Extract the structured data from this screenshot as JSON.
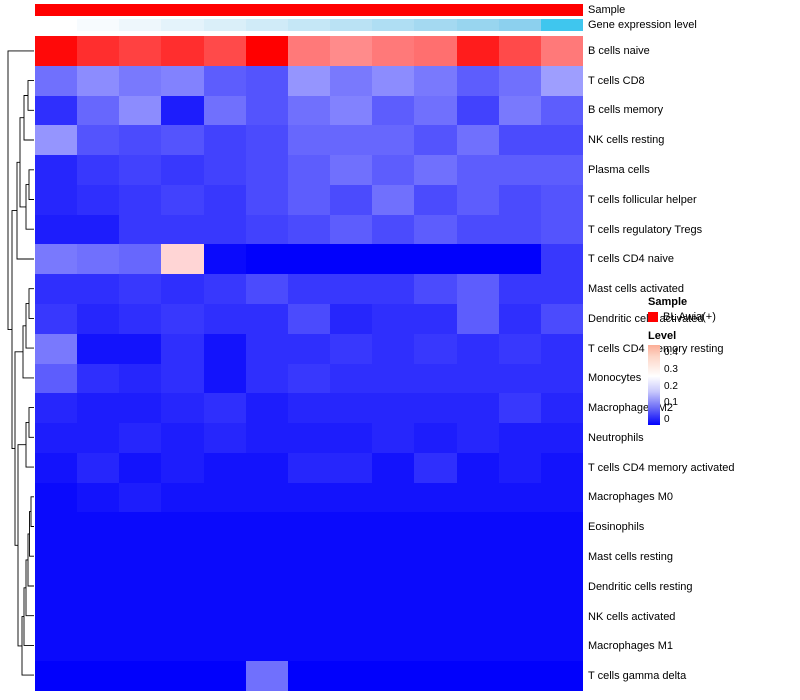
{
  "annotations": {
    "sample": {
      "label": "Sample",
      "color": "#FF0000"
    },
    "gene_expression": {
      "label": "Gene expression level",
      "colors": [
        "#FFFFFF",
        "#F7FBFE",
        "#EEF7FC",
        "#E4F3FB",
        "#DAEFF9",
        "#D0EBF8",
        "#C5E7F6",
        "#BAE2F4",
        "#AFDEF3",
        "#A4D9F1",
        "#98D5EF",
        "#8CD0EE",
        "#3FC6EE"
      ]
    }
  },
  "legend": {
    "sample_title": "Sample",
    "sample_items": [
      {
        "label": "BL Awia(+)",
        "color": "#FF0000"
      }
    ],
    "level_title": "Level",
    "level_ticks": [
      "0.4",
      "0.3",
      "0.2",
      "0.1",
      "0"
    ]
  },
  "chart_data": {
    "type": "heatmap",
    "title": "",
    "xlabel": "",
    "ylabel": "",
    "columns": 13,
    "column_group": "BL Awia(+)",
    "rows": [
      "B cells naive",
      "T cells CD8",
      "B cells memory",
      "NK cells resting",
      "Plasma cells",
      "T cells follicular helper",
      "T cells regulatory  Tregs",
      "T cells CD4 naive",
      "Mast cells activated",
      "Dendritic cells activated",
      "T cells CD4 memory resting",
      "Monocytes",
      "Macrophages M2",
      "Neutrophils",
      "T cells CD4 memory activated",
      "Macrophages M0",
      "Eosinophils",
      "Mast cells resting",
      "Dendritic cells resting",
      "NK cells activated",
      "Macrophages M1",
      "T cells gamma delta"
    ],
    "values": [
      [
        0.54,
        0.5,
        0.48,
        0.5,
        0.47,
        0.55,
        0.42,
        0.4,
        0.42,
        0.43,
        0.52,
        0.47,
        0.42
      ],
      [
        0.12,
        0.15,
        0.13,
        0.14,
        0.1,
        0.09,
        0.16,
        0.13,
        0.15,
        0.13,
        0.1,
        0.12,
        0.17
      ],
      [
        0.05,
        0.11,
        0.15,
        0.03,
        0.12,
        0.09,
        0.12,
        0.14,
        0.1,
        0.12,
        0.07,
        0.13,
        0.1
      ],
      [
        0.16,
        0.09,
        0.08,
        0.09,
        0.07,
        0.08,
        0.11,
        0.11,
        0.11,
        0.09,
        0.12,
        0.08,
        0.08
      ],
      [
        0.04,
        0.06,
        0.07,
        0.06,
        0.07,
        0.08,
        0.1,
        0.12,
        0.1,
        0.12,
        0.1,
        0.1,
        0.1
      ],
      [
        0.04,
        0.05,
        0.06,
        0.07,
        0.06,
        0.08,
        0.1,
        0.08,
        0.12,
        0.08,
        0.1,
        0.08,
        0.09
      ],
      [
        0.03,
        0.03,
        0.06,
        0.06,
        0.06,
        0.07,
        0.08,
        0.1,
        0.08,
        0.1,
        0.08,
        0.08,
        0.09
      ],
      [
        0.13,
        0.12,
        0.11,
        0.32,
        0.01,
        0.0,
        0.0,
        0.0,
        0.0,
        0.0,
        0.0,
        0.0,
        0.06
      ],
      [
        0.05,
        0.05,
        0.06,
        0.05,
        0.06,
        0.08,
        0.06,
        0.06,
        0.06,
        0.08,
        0.1,
        0.06,
        0.06
      ],
      [
        0.06,
        0.04,
        0.05,
        0.06,
        0.05,
        0.05,
        0.08,
        0.04,
        0.05,
        0.05,
        0.1,
        0.05,
        0.08
      ],
      [
        0.13,
        0.02,
        0.02,
        0.05,
        0.02,
        0.05,
        0.05,
        0.06,
        0.05,
        0.06,
        0.05,
        0.06,
        0.05
      ],
      [
        0.1,
        0.05,
        0.04,
        0.05,
        0.02,
        0.05,
        0.06,
        0.05,
        0.05,
        0.05,
        0.05,
        0.05,
        0.05
      ],
      [
        0.04,
        0.03,
        0.03,
        0.04,
        0.05,
        0.03,
        0.04,
        0.04,
        0.04,
        0.04,
        0.04,
        0.06,
        0.04
      ],
      [
        0.03,
        0.03,
        0.04,
        0.03,
        0.04,
        0.03,
        0.03,
        0.03,
        0.04,
        0.03,
        0.04,
        0.03,
        0.03
      ],
      [
        0.02,
        0.04,
        0.02,
        0.03,
        0.02,
        0.02,
        0.04,
        0.04,
        0.02,
        0.05,
        0.02,
        0.03,
        0.02
      ],
      [
        0.01,
        0.02,
        0.03,
        0.02,
        0.02,
        0.02,
        0.02,
        0.02,
        0.02,
        0.02,
        0.02,
        0.02,
        0.02
      ],
      [
        0.01,
        0.01,
        0.01,
        0.01,
        0.01,
        0.01,
        0.01,
        0.01,
        0.01,
        0.01,
        0.01,
        0.01,
        0.01
      ],
      [
        0.01,
        0.01,
        0.01,
        0.01,
        0.01,
        0.01,
        0.01,
        0.01,
        0.01,
        0.01,
        0.01,
        0.01,
        0.01
      ],
      [
        0.01,
        0.01,
        0.01,
        0.01,
        0.01,
        0.01,
        0.01,
        0.01,
        0.01,
        0.01,
        0.01,
        0.01,
        0.01
      ],
      [
        0.01,
        0.01,
        0.01,
        0.01,
        0.01,
        0.01,
        0.01,
        0.01,
        0.01,
        0.01,
        0.01,
        0.01,
        0.01
      ],
      [
        0.01,
        0.01,
        0.01,
        0.01,
        0.01,
        0.01,
        0.01,
        0.01,
        0.01,
        0.01,
        0.01,
        0.01,
        0.01
      ],
      [
        0.0,
        0.0,
        0.0,
        0.0,
        0.0,
        0.12,
        0.0,
        0.0,
        0.0,
        0.0,
        0.0,
        0.0,
        0.0
      ]
    ],
    "colormap": {
      "min": 0,
      "mid": 0.275,
      "max": 0.55,
      "min_color": "#0101FC",
      "mid_color": "#FFFFFF",
      "max_color": "#FF0000"
    },
    "legend_range": [
      0,
      0.4
    ],
    "grid": false,
    "legend_position": "right",
    "row_dendrogram": true
  }
}
